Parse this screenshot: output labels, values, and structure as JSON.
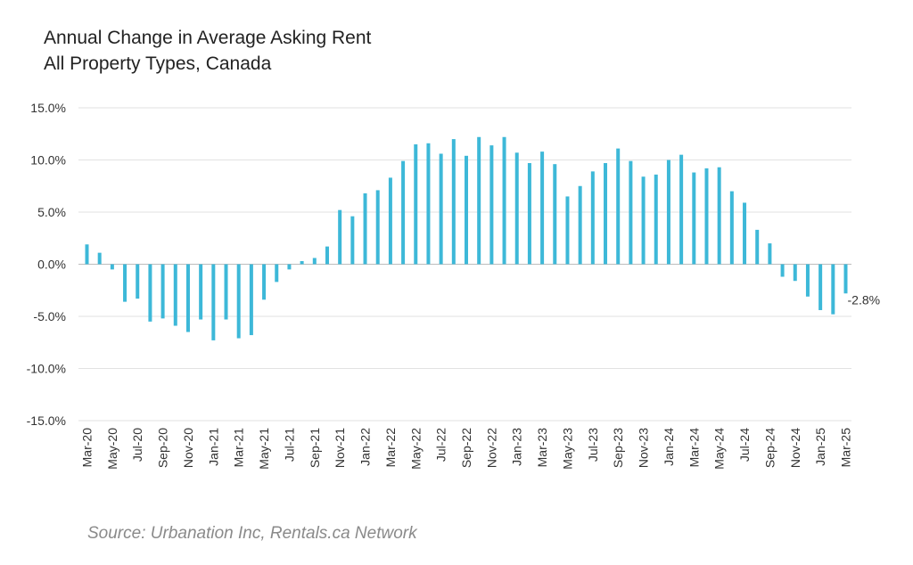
{
  "chart_data": {
    "type": "bar",
    "title": "Annual Change in Average Asking Rent",
    "subtitle": "All Property Types, Canada",
    "xlabel": "",
    "ylabel": "",
    "ylim": [
      -15,
      15
    ],
    "yticks": [
      15,
      10,
      5,
      0,
      -5,
      -10,
      -15
    ],
    "ytick_labels": [
      "15.0%",
      "10.0%",
      "5.0%",
      "0.0%",
      "-5.0%",
      "-10.0%",
      "-15.0%"
    ],
    "grid": true,
    "legend": "none",
    "bar_color": "#3db8d8",
    "categories": [
      "Mar-20",
      "Apr-20",
      "May-20",
      "Jun-20",
      "Jul-20",
      "Aug-20",
      "Sep-20",
      "Oct-20",
      "Nov-20",
      "Dec-20",
      "Jan-21",
      "Feb-21",
      "Mar-21",
      "Apr-21",
      "May-21",
      "Jun-21",
      "Jul-21",
      "Aug-21",
      "Sep-21",
      "Oct-21",
      "Nov-21",
      "Dec-21",
      "Jan-22",
      "Feb-22",
      "Mar-22",
      "Apr-22",
      "May-22",
      "Jun-22",
      "Jul-22",
      "Aug-22",
      "Sep-22",
      "Oct-22",
      "Nov-22",
      "Dec-22",
      "Jan-23",
      "Feb-23",
      "Mar-23",
      "Apr-23",
      "May-23",
      "Jun-23",
      "Jul-23",
      "Aug-23",
      "Sep-23",
      "Oct-23",
      "Nov-23",
      "Dec-23",
      "Jan-24",
      "Feb-24",
      "Mar-24",
      "Apr-24",
      "May-24",
      "Jun-24",
      "Jul-24",
      "Aug-24",
      "Sep-24",
      "Oct-24",
      "Nov-24",
      "Dec-24",
      "Jan-25",
      "Feb-25",
      "Mar-25"
    ],
    "tick_labels": [
      "Mar-20",
      "May-20",
      "Jul-20",
      "Sep-20",
      "Nov-20",
      "Jan-21",
      "Mar-21",
      "May-21",
      "Jul-21",
      "Sep-21",
      "Nov-21",
      "Jan-22",
      "Mar-22",
      "May-22",
      "Jul-22",
      "Sep-22",
      "Nov-22",
      "Jan-23",
      "Mar-23",
      "May-23",
      "Jul-23",
      "Sep-23",
      "Nov-23",
      "Jan-24",
      "Mar-24",
      "May-24",
      "Jul-24",
      "Sep-24",
      "Nov-24",
      "Jan-25",
      "Mar-25"
    ],
    "values": [
      1.9,
      1.1,
      -0.5,
      -3.6,
      -3.3,
      -5.5,
      -5.2,
      -5.9,
      -6.5,
      -5.3,
      -7.3,
      -5.3,
      -7.1,
      -6.8,
      -3.4,
      -1.7,
      -0.5,
      0.3,
      0.6,
      1.7,
      5.2,
      4.6,
      6.8,
      7.1,
      8.3,
      9.9,
      11.5,
      11.6,
      10.6,
      12.0,
      10.4,
      12.2,
      11.4,
      12.2,
      10.7,
      9.7,
      10.8,
      9.6,
      6.5,
      7.5,
      8.9,
      9.7,
      11.1,
      9.9,
      8.4,
      8.6,
      10.0,
      10.5,
      8.8,
      9.2,
      9.3,
      7.0,
      5.9,
      3.3,
      2.0,
      -1.2,
      -1.6,
      -3.1,
      -4.4,
      -4.8,
      -2.8
    ],
    "annotations": [
      {
        "label": "-2.8%"
      }
    ]
  },
  "source": "Source: Urbanation Inc, Rentals.ca Network"
}
